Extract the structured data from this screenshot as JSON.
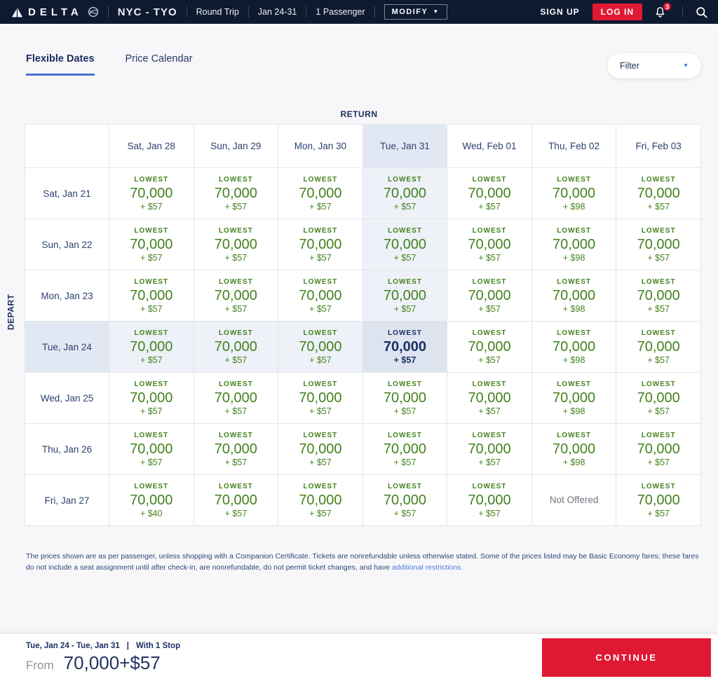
{
  "navbar": {
    "brand": "DELTA",
    "route": "NYC - TYO",
    "trip_type": "Round Trip",
    "dates": "Jan 24-31",
    "passengers": "1 Passenger",
    "modify_label": "MODIFY",
    "sign_up_label": "SIGN UP",
    "log_in_label": "LOG IN",
    "notification_count": "3"
  },
  "tabs": [
    {
      "label": "Flexible Dates",
      "active": true
    },
    {
      "label": "Price Calendar",
      "active": false
    }
  ],
  "filter": {
    "label": "Filter"
  },
  "matrix": {
    "return_label": "RETURN",
    "depart_label": "DEPART",
    "selected_col_index": 3,
    "selected_row_index": 3,
    "columns": [
      "Sat, Jan 28",
      "Sun, Jan 29",
      "Mon, Jan 30",
      "Tue, Jan 31",
      "Wed, Feb 01",
      "Thu, Feb 02",
      "Fri, Feb 03"
    ],
    "rows": [
      {
        "label": "Sat, Jan 21",
        "cells": [
          {
            "tier": "LOWEST",
            "miles": "70,000",
            "cash": "+ $57"
          },
          {
            "tier": "LOWEST",
            "miles": "70,000",
            "cash": "+ $57"
          },
          {
            "tier": "LOWEST",
            "miles": "70,000",
            "cash": "+ $57"
          },
          {
            "tier": "LOWEST",
            "miles": "70,000",
            "cash": "+ $57"
          },
          {
            "tier": "LOWEST",
            "miles": "70,000",
            "cash": "+ $57"
          },
          {
            "tier": "LOWEST",
            "miles": "70,000",
            "cash": "+ $98"
          },
          {
            "tier": "LOWEST",
            "miles": "70,000",
            "cash": "+ $57"
          }
        ]
      },
      {
        "label": "Sun, Jan 22",
        "cells": [
          {
            "tier": "LOWEST",
            "miles": "70,000",
            "cash": "+ $57"
          },
          {
            "tier": "LOWEST",
            "miles": "70,000",
            "cash": "+ $57"
          },
          {
            "tier": "LOWEST",
            "miles": "70,000",
            "cash": "+ $57"
          },
          {
            "tier": "LOWEST",
            "miles": "70,000",
            "cash": "+ $57"
          },
          {
            "tier": "LOWEST",
            "miles": "70,000",
            "cash": "+ $57"
          },
          {
            "tier": "LOWEST",
            "miles": "70,000",
            "cash": "+ $98"
          },
          {
            "tier": "LOWEST",
            "miles": "70,000",
            "cash": "+ $57"
          }
        ]
      },
      {
        "label": "Mon, Jan 23",
        "cells": [
          {
            "tier": "LOWEST",
            "miles": "70,000",
            "cash": "+ $57"
          },
          {
            "tier": "LOWEST",
            "miles": "70,000",
            "cash": "+ $57"
          },
          {
            "tier": "LOWEST",
            "miles": "70,000",
            "cash": "+ $57"
          },
          {
            "tier": "LOWEST",
            "miles": "70,000",
            "cash": "+ $57"
          },
          {
            "tier": "LOWEST",
            "miles": "70,000",
            "cash": "+ $57"
          },
          {
            "tier": "LOWEST",
            "miles": "70,000",
            "cash": "+ $98"
          },
          {
            "tier": "LOWEST",
            "miles": "70,000",
            "cash": "+ $57"
          }
        ]
      },
      {
        "label": "Tue, Jan 24",
        "cells": [
          {
            "tier": "LOWEST",
            "miles": "70,000",
            "cash": "+ $57"
          },
          {
            "tier": "LOWEST",
            "miles": "70,000",
            "cash": "+ $57"
          },
          {
            "tier": "LOWEST",
            "miles": "70,000",
            "cash": "+ $57"
          },
          {
            "tier": "LOWEST",
            "miles": "70,000",
            "cash": "+ $57"
          },
          {
            "tier": "LOWEST",
            "miles": "70,000",
            "cash": "+ $57"
          },
          {
            "tier": "LOWEST",
            "miles": "70,000",
            "cash": "+ $98"
          },
          {
            "tier": "LOWEST",
            "miles": "70,000",
            "cash": "+ $57"
          }
        ]
      },
      {
        "label": "Wed, Jan 25",
        "cells": [
          {
            "tier": "LOWEST",
            "miles": "70,000",
            "cash": "+ $57"
          },
          {
            "tier": "LOWEST",
            "miles": "70,000",
            "cash": "+ $57"
          },
          {
            "tier": "LOWEST",
            "miles": "70,000",
            "cash": "+ $57"
          },
          {
            "tier": "LOWEST",
            "miles": "70,000",
            "cash": "+ $57"
          },
          {
            "tier": "LOWEST",
            "miles": "70,000",
            "cash": "+ $57"
          },
          {
            "tier": "LOWEST",
            "miles": "70,000",
            "cash": "+ $98"
          },
          {
            "tier": "LOWEST",
            "miles": "70,000",
            "cash": "+ $57"
          }
        ]
      },
      {
        "label": "Thu, Jan 26",
        "cells": [
          {
            "tier": "LOWEST",
            "miles": "70,000",
            "cash": "+ $57"
          },
          {
            "tier": "LOWEST",
            "miles": "70,000",
            "cash": "+ $57"
          },
          {
            "tier": "LOWEST",
            "miles": "70,000",
            "cash": "+ $57"
          },
          {
            "tier": "LOWEST",
            "miles": "70,000",
            "cash": "+ $57"
          },
          {
            "tier": "LOWEST",
            "miles": "70,000",
            "cash": "+ $57"
          },
          {
            "tier": "LOWEST",
            "miles": "70,000",
            "cash": "+ $98"
          },
          {
            "tier": "LOWEST",
            "miles": "70,000",
            "cash": "+ $57"
          }
        ]
      },
      {
        "label": "Fri, Jan 27",
        "cells": [
          {
            "tier": "LOWEST",
            "miles": "70,000",
            "cash": "+ $40"
          },
          {
            "tier": "LOWEST",
            "miles": "70,000",
            "cash": "+ $57"
          },
          {
            "tier": "LOWEST",
            "miles": "70,000",
            "cash": "+ $57"
          },
          {
            "tier": "LOWEST",
            "miles": "70,000",
            "cash": "+ $57"
          },
          {
            "tier": "LOWEST",
            "miles": "70,000",
            "cash": "+ $57"
          },
          {
            "not_offered": "Not Offered"
          },
          {
            "tier": "LOWEST",
            "miles": "70,000",
            "cash": "+ $57"
          }
        ]
      }
    ]
  },
  "disclaimer": {
    "text": "The prices shown are as per passenger, unless shopping with a Companion Certificate. Tickets are nonrefundable unless otherwise stated. Some of the prices listed may be Basic Economy fares; these fares do not include a seat assignment until after check-in, are nonrefundable, do not permit ticket changes, and have ",
    "link_label": "additional restrictions."
  },
  "footer": {
    "date_range": "Tue, Jan 24  -  Tue, Jan 31",
    "separator": "|",
    "stops": "With 1 Stop",
    "from_label": "From",
    "price": "70,000+$57",
    "continue_label": "CONTINUE"
  },
  "colors": {
    "delta_red": "#e01933",
    "fare_green": "#43821d",
    "navy": "#1b2f66",
    "link_blue": "#4c7bd9",
    "selected_cell_bg": "#dde4f0",
    "crosshair_bg": "#eef1f8",
    "selected_header_bg": "#e2e8f3"
  }
}
